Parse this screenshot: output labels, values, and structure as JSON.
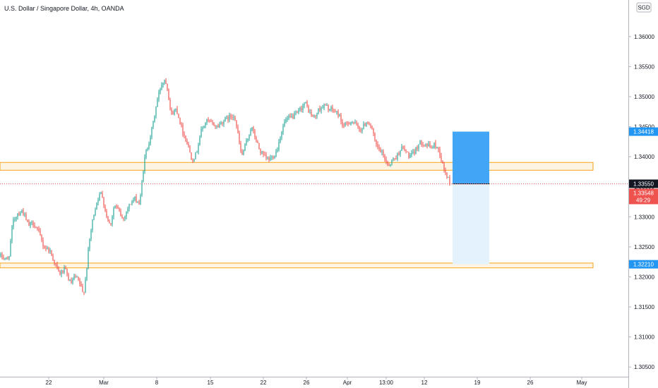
{
  "chart_data": {
    "type": "candlestick",
    "title": "U.S. Dollar / Singapore Dollar, 4h, OANDA",
    "currency_badge": "SGD",
    "y_ticks": [
      "1.36000",
      "1.35500",
      "1.35000",
      "1.34500",
      "1.34000",
      "1.33500",
      "1.33000",
      "1.32500",
      "1.32000",
      "1.31500",
      "1.31000",
      "1.30500"
    ],
    "ylim": [
      1.3035,
      1.3655
    ],
    "x_ticks": [
      {
        "label": "22",
        "t": 69
      },
      {
        "label": "Mar",
        "t": 147
      },
      {
        "label": "8",
        "t": 222
      },
      {
        "label": "15",
        "t": 298
      },
      {
        "label": "22",
        "t": 373
      },
      {
        "label": "26",
        "t": 434
      },
      {
        "label": "Apr",
        "t": 492
      },
      {
        "label": "13:00",
        "t": 547
      },
      {
        "label": "12",
        "t": 601
      },
      {
        "label": "19",
        "t": 676
      },
      {
        "label": "26",
        "t": 751
      },
      {
        "label": "May",
        "t": 824
      }
    ],
    "xlim": [
      0,
      890
    ],
    "candle_path": [
      [
        0,
        1.3235
      ],
      [
        12,
        1.3228
      ],
      [
        18,
        1.329
      ],
      [
        24,
        1.3305
      ],
      [
        32,
        1.331
      ],
      [
        40,
        1.3285
      ],
      [
        48,
        1.329
      ],
      [
        56,
        1.327
      ],
      [
        62,
        1.325
      ],
      [
        70,
        1.3245
      ],
      [
        78,
        1.3222
      ],
      [
        84,
        1.3205
      ],
      [
        92,
        1.3212
      ],
      [
        100,
        1.3188
      ],
      [
        106,
        1.32
      ],
      [
        112,
        1.3192
      ],
      [
        118,
        1.317
      ],
      [
        122,
        1.3205
      ],
      [
        126,
        1.3255
      ],
      [
        132,
        1.33
      ],
      [
        138,
        1.333
      ],
      [
        144,
        1.334
      ],
      [
        150,
        1.3305
      ],
      [
        156,
        1.3285
      ],
      [
        162,
        1.332
      ],
      [
        168,
        1.331
      ],
      [
        174,
        1.3295
      ],
      [
        180,
        1.3312
      ],
      [
        186,
        1.3325
      ],
      [
        192,
        1.333
      ],
      [
        198,
        1.332
      ],
      [
        202,
        1.337
      ],
      [
        206,
        1.3405
      ],
      [
        210,
        1.342
      ],
      [
        216,
        1.345
      ],
      [
        222,
        1.349
      ],
      [
        228,
        1.352
      ],
      [
        234,
        1.353
      ],
      [
        238,
        1.351
      ],
      [
        242,
        1.347
      ],
      [
        250,
        1.348
      ],
      [
        258,
        1.3445
      ],
      [
        266,
        1.342
      ],
      [
        272,
        1.3395
      ],
      [
        278,
        1.3405
      ],
      [
        284,
        1.344
      ],
      [
        292,
        1.346
      ],
      [
        300,
        1.3455
      ],
      [
        308,
        1.345
      ],
      [
        316,
        1.346
      ],
      [
        324,
        1.3465
      ],
      [
        332,
        1.347
      ],
      [
        338,
        1.343
      ],
      [
        342,
        1.34
      ],
      [
        348,
        1.342
      ],
      [
        356,
        1.345
      ],
      [
        362,
        1.343
      ],
      [
        368,
        1.341
      ],
      [
        374,
        1.34
      ],
      [
        380,
        1.3395
      ],
      [
        386,
        1.34
      ],
      [
        392,
        1.341
      ],
      [
        398,
        1.344
      ],
      [
        404,
        1.346
      ],
      [
        412,
        1.3465
      ],
      [
        420,
        1.347
      ],
      [
        426,
        1.348
      ],
      [
        432,
        1.349
      ],
      [
        440,
        1.347
      ],
      [
        446,
        1.3465
      ],
      [
        452,
        1.348
      ],
      [
        460,
        1.3485
      ],
      [
        466,
        1.348
      ],
      [
        474,
        1.3475
      ],
      [
        480,
        1.347
      ],
      [
        486,
        1.345
      ],
      [
        492,
        1.3455
      ],
      [
        498,
        1.346
      ],
      [
        506,
        1.345
      ],
      [
        512,
        1.3445
      ],
      [
        520,
        1.346
      ],
      [
        526,
        1.345
      ],
      [
        532,
        1.342
      ],
      [
        538,
        1.341
      ],
      [
        544,
        1.34
      ],
      [
        550,
        1.3385
      ],
      [
        556,
        1.3395
      ],
      [
        562,
        1.34
      ],
      [
        568,
        1.3415
      ],
      [
        574,
        1.341
      ],
      [
        580,
        1.34
      ],
      [
        586,
        1.3405
      ],
      [
        592,
        1.342
      ],
      [
        598,
        1.3425
      ],
      [
        604,
        1.342
      ],
      [
        610,
        1.3415
      ],
      [
        616,
        1.342
      ],
      [
        622,
        1.341
      ],
      [
        626,
        1.339
      ],
      [
        630,
        1.3375
      ],
      [
        634,
        1.3365
      ],
      [
        638,
        1.3355
      ]
    ],
    "zones": [
      {
        "name": "resistance-zone",
        "t_start": 0,
        "t_end": 840,
        "y_low": 1.33775,
        "y_high": 1.33905,
        "color": "#f7a21b"
      },
      {
        "name": "support-zone",
        "t_start": 0,
        "t_end": 840,
        "y_low": 1.3215,
        "y_high": 1.3223,
        "color": "#f7a21b"
      }
    ],
    "position_tool": {
      "t_start": 641,
      "t_end": 693,
      "entry": 1.33548,
      "target": 1.34418,
      "stop": 1.3221,
      "target_color": "#42a5f5",
      "stop_color": "#e3f2fd"
    },
    "price_tags": [
      {
        "label": "1.34418",
        "value": 1.34418,
        "bg": "#2196f3"
      },
      {
        "label": "1.33550",
        "value": 1.3355,
        "bg": "#131722"
      },
      {
        "label": "1.33548",
        "value": 1.33548,
        "bg": "#ef5350",
        "sub": "49:29"
      },
      {
        "label": "1.32210",
        "value": 1.3221,
        "bg": "#2196f3"
      }
    ],
    "last_price": 1.33548,
    "colors": {
      "up": "#26a69a",
      "down": "#ef5350",
      "axis": "#b2b5be",
      "text": "#131722"
    }
  }
}
